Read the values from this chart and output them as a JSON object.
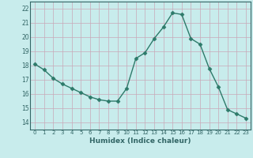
{
  "x": [
    0,
    1,
    2,
    3,
    4,
    5,
    6,
    7,
    8,
    9,
    10,
    11,
    12,
    13,
    14,
    15,
    16,
    17,
    18,
    19,
    20,
    21,
    22,
    23
  ],
  "y": [
    18.1,
    17.7,
    17.1,
    16.7,
    16.4,
    16.1,
    15.8,
    15.6,
    15.5,
    15.5,
    16.4,
    18.5,
    18.9,
    19.9,
    20.7,
    21.7,
    21.6,
    19.9,
    19.5,
    17.8,
    16.5,
    14.9,
    14.6,
    14.3
  ],
  "line_color": "#2d7a6a",
  "marker": "D",
  "marker_size": 2.5,
  "bg_color": "#c8ecec",
  "grid_color": "#c8a8b8",
  "axis_color": "#336666",
  "tick_color": "#336666",
  "xlabel": "Humidex (Indice chaleur)",
  "xlim": [
    -0.5,
    23.5
  ],
  "ylim": [
    13.5,
    22.5
  ],
  "yticks": [
    14,
    15,
    16,
    17,
    18,
    19,
    20,
    21,
    22
  ],
  "xticks": [
    0,
    1,
    2,
    3,
    4,
    5,
    6,
    7,
    8,
    9,
    10,
    11,
    12,
    13,
    14,
    15,
    16,
    17,
    18,
    19,
    20,
    21,
    22,
    23
  ]
}
